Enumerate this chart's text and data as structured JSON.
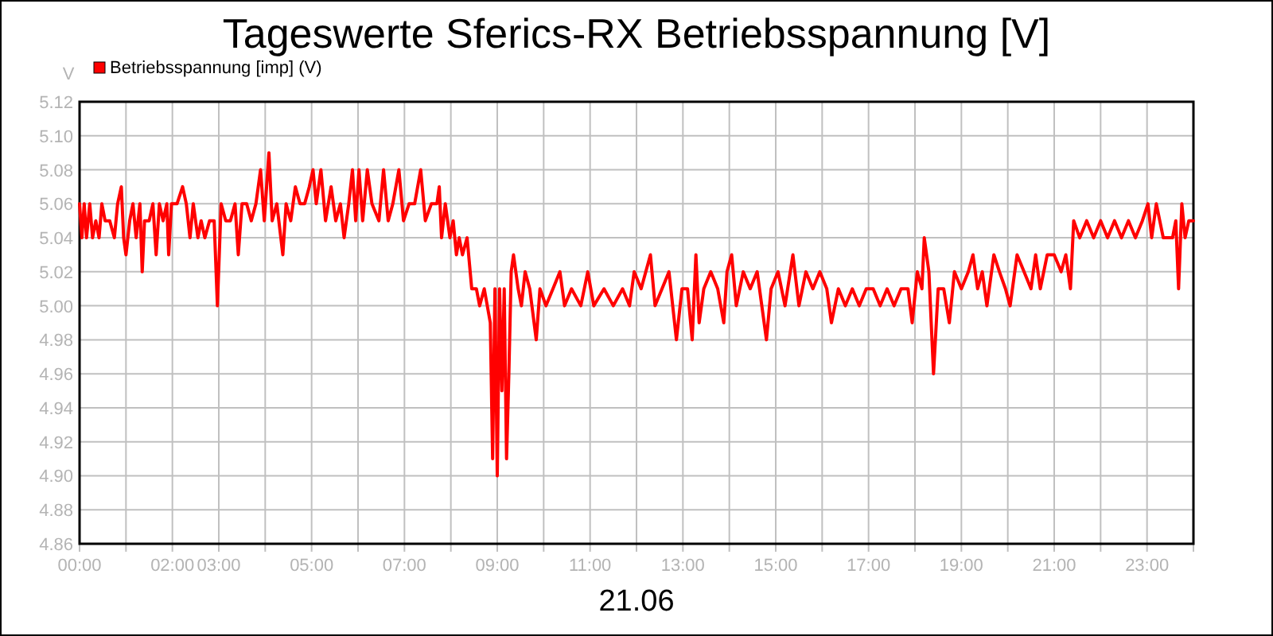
{
  "chart_data": {
    "type": "line",
    "title": "Tageswerte Sferics-RX Betriebsspannung [V]",
    "ylabel": "V",
    "xlabel": "21.06",
    "legend": "top left",
    "grid": true,
    "marker": "none",
    "line_style": "solid",
    "xlim": [
      0,
      24
    ],
    "ylim": [
      4.86,
      5.12
    ],
    "yticks": [
      4.86,
      4.88,
      {
        "value": 4.9,
        "label": "4.90"
      },
      4.92,
      4.94,
      4.96,
      4.98,
      {
        "value": 5.0,
        "label": "5.00"
      },
      5.02,
      5.04,
      5.06,
      5.08,
      {
        "value": 5.1,
        "label": "5.10"
      },
      5.12
    ],
    "xticks": [
      {
        "value": 0,
        "label": "00:00"
      },
      {
        "value": 1,
        "label": null
      },
      {
        "value": 2,
        "label": "02:00"
      },
      {
        "value": 3,
        "label": "03:00"
      },
      {
        "value": 4,
        "label": null
      },
      {
        "value": 5,
        "label": "05:00"
      },
      {
        "value": 6,
        "label": null
      },
      {
        "value": 7,
        "label": "07:00"
      },
      {
        "value": 8,
        "label": null
      },
      {
        "value": 9,
        "label": "09:00"
      },
      {
        "value": 10,
        "label": null
      },
      {
        "value": 11,
        "label": "11:00"
      },
      {
        "value": 12,
        "label": null
      },
      {
        "value": 13,
        "label": "13:00"
      },
      {
        "value": 14,
        "label": null
      },
      {
        "value": 15,
        "label": "15:00"
      },
      {
        "value": 16,
        "label": null
      },
      {
        "value": 17,
        "label": "17:00"
      },
      {
        "value": 18,
        "label": null
      },
      {
        "value": 19,
        "label": "19:00"
      },
      {
        "value": 20,
        "label": null
      },
      {
        "value": 21,
        "label": "21:00"
      },
      {
        "value": 22,
        "label": null
      },
      {
        "value": 23,
        "label": "23:00"
      },
      {
        "value": 24,
        "label": null
      }
    ],
    "series": [
      {
        "name": "Betriebsspannung [imp] (V)",
        "color": "#ff0000",
        "x": [
          0.0,
          0.05,
          0.1,
          0.15,
          0.22,
          0.28,
          0.35,
          0.42,
          0.48,
          0.55,
          0.65,
          0.75,
          0.82,
          0.9,
          0.95,
          1.0,
          1.08,
          1.15,
          1.22,
          1.3,
          1.35,
          1.4,
          1.5,
          1.58,
          1.65,
          1.72,
          1.8,
          1.88,
          1.92,
          1.98,
          2.1,
          2.22,
          2.3,
          2.38,
          2.45,
          2.55,
          2.62,
          2.7,
          2.8,
          2.9,
          2.97,
          3.05,
          3.15,
          3.25,
          3.35,
          3.42,
          3.5,
          3.6,
          3.7,
          3.8,
          3.9,
          3.98,
          4.08,
          4.15,
          4.25,
          4.38,
          4.45,
          4.55,
          4.65,
          4.75,
          4.85,
          4.95,
          5.03,
          5.1,
          5.2,
          5.3,
          5.42,
          5.52,
          5.62,
          5.7,
          5.8,
          5.88,
          5.95,
          6.02,
          6.1,
          6.2,
          6.3,
          6.45,
          6.55,
          6.65,
          6.75,
          6.88,
          6.98,
          7.1,
          7.22,
          7.35,
          7.45,
          7.58,
          7.7,
          7.75,
          7.8,
          7.88,
          7.98,
          8.05,
          8.12,
          8.18,
          8.25,
          8.35,
          8.45,
          8.55,
          8.62,
          8.72,
          8.85,
          8.9,
          8.95,
          9.0,
          9.05,
          9.1,
          9.15,
          9.2,
          9.25,
          9.3,
          9.35,
          9.45,
          9.52,
          9.6,
          9.7,
          9.84,
          9.92,
          10.05,
          10.2,
          10.35,
          10.45,
          10.6,
          10.8,
          10.95,
          11.08,
          11.3,
          11.5,
          11.7,
          11.85,
          11.95,
          12.1,
          12.3,
          12.4,
          12.55,
          12.7,
          12.86,
          12.98,
          13.1,
          13.2,
          13.28,
          13.35,
          13.45,
          13.6,
          13.75,
          13.88,
          13.95,
          14.05,
          14.15,
          14.3,
          14.45,
          14.6,
          14.8,
          14.9,
          15.05,
          15.2,
          15.37,
          15.5,
          15.65,
          15.8,
          15.95,
          16.1,
          16.2,
          16.35,
          16.5,
          16.65,
          16.8,
          16.95,
          17.1,
          17.25,
          17.4,
          17.55,
          17.7,
          17.85,
          17.94,
          18.05,
          18.15,
          18.2,
          18.3,
          18.4,
          18.5,
          18.62,
          18.74,
          18.85,
          19.0,
          19.15,
          19.25,
          19.35,
          19.45,
          19.55,
          19.7,
          19.82,
          19.95,
          20.05,
          20.2,
          20.35,
          20.5,
          20.6,
          20.7,
          20.85,
          21.0,
          21.15,
          21.25,
          21.35,
          21.42,
          21.55,
          21.7,
          21.85,
          22.0,
          22.15,
          22.3,
          22.45,
          22.6,
          22.75,
          22.9,
          23.02,
          23.1,
          23.2,
          23.35,
          23.55,
          23.62,
          23.68,
          23.75,
          23.82,
          23.9,
          24.0
        ],
        "values": [
          5.06,
          5.04,
          5.06,
          5.04,
          5.06,
          5.04,
          5.05,
          5.04,
          5.06,
          5.05,
          5.05,
          5.04,
          5.06,
          5.07,
          5.04,
          5.03,
          5.05,
          5.06,
          5.04,
          5.06,
          5.02,
          5.05,
          5.05,
          5.06,
          5.03,
          5.06,
          5.05,
          5.06,
          5.03,
          5.06,
          5.06,
          5.07,
          5.06,
          5.04,
          5.06,
          5.04,
          5.05,
          5.04,
          5.05,
          5.05,
          5.0,
          5.06,
          5.05,
          5.05,
          5.06,
          5.03,
          5.06,
          5.06,
          5.05,
          5.06,
          5.08,
          5.05,
          5.09,
          5.05,
          5.06,
          5.03,
          5.06,
          5.05,
          5.07,
          5.06,
          5.06,
          5.07,
          5.08,
          5.06,
          5.08,
          5.05,
          5.07,
          5.05,
          5.06,
          5.04,
          5.06,
          5.08,
          5.05,
          5.08,
          5.05,
          5.08,
          5.06,
          5.05,
          5.08,
          5.05,
          5.06,
          5.08,
          5.05,
          5.06,
          5.06,
          5.08,
          5.05,
          5.06,
          5.06,
          5.07,
          5.04,
          5.06,
          5.04,
          5.05,
          5.03,
          5.04,
          5.03,
          5.04,
          5.01,
          5.01,
          5.0,
          5.01,
          4.99,
          4.91,
          5.01,
          4.9,
          5.01,
          4.95,
          5.01,
          4.91,
          4.96,
          5.02,
          5.03,
          5.01,
          5.0,
          5.02,
          5.01,
          4.98,
          5.01,
          5.0,
          5.01,
          5.02,
          5.0,
          5.01,
          5.0,
          5.02,
          5.0,
          5.01,
          5.0,
          5.01,
          5.0,
          5.02,
          5.01,
          5.03,
          5.0,
          5.01,
          5.02,
          4.98,
          5.01,
          5.01,
          4.98,
          5.03,
          4.99,
          5.01,
          5.02,
          5.01,
          4.99,
          5.02,
          5.03,
          5.0,
          5.02,
          5.01,
          5.02,
          4.98,
          5.01,
          5.02,
          5.0,
          5.03,
          5.0,
          5.02,
          5.01,
          5.02,
          5.01,
          4.99,
          5.01,
          5.0,
          5.01,
          5.0,
          5.01,
          5.01,
          5.0,
          5.01,
          5.0,
          5.01,
          5.01,
          4.99,
          5.02,
          5.01,
          5.04,
          5.02,
          4.96,
          5.01,
          5.01,
          4.99,
          5.02,
          5.01,
          5.02,
          5.03,
          5.01,
          5.02,
          5.0,
          5.03,
          5.02,
          5.01,
          5.0,
          5.03,
          5.02,
          5.01,
          5.03,
          5.01,
          5.03,
          5.03,
          5.02,
          5.03,
          5.01,
          5.05,
          5.04,
          5.05,
          5.04,
          5.05,
          5.04,
          5.05,
          5.04,
          5.05,
          5.04,
          5.05,
          5.06,
          5.04,
          5.06,
          5.04,
          5.04,
          5.05,
          5.01,
          5.06,
          5.04,
          5.05,
          5.05
        ]
      }
    ]
  }
}
